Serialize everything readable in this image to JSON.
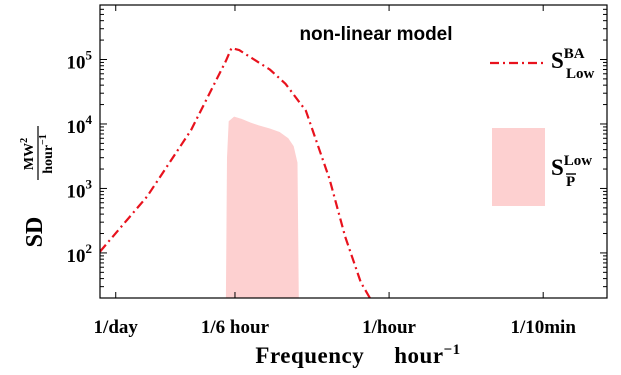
{
  "chart_data": {
    "type": "line",
    "annotation": "non-linear model",
    "xlabel": "Frequency",
    "xlabel_unit": "hour",
    "xlabel_unit_exp": "−1",
    "ylabel": "SD",
    "ylabel_unit_num_base": "MW",
    "ylabel_unit_num_exp": "2",
    "ylabel_unit_den_base": "hour",
    "ylabel_unit_den_exp": "−1",
    "x_scale": "log",
    "y_scale": "log",
    "x_unit": "cycles per hour",
    "xlim": [
      0.0347,
      12.6
    ],
    "ylim": [
      20,
      700000
    ],
    "x_ticks": [
      {
        "value": 0.041667,
        "label": "1/day"
      },
      {
        "value": 0.16667,
        "label": "1/6 hour"
      },
      {
        "value": 1,
        "label": "1/hour"
      },
      {
        "value": 6,
        "label": "1/10min"
      }
    ],
    "y_ticks": [
      {
        "value": 100,
        "base": "10",
        "exp": "2"
      },
      {
        "value": 1000,
        "base": "10",
        "exp": "3"
      },
      {
        "value": 10000,
        "base": "10",
        "exp": "4"
      },
      {
        "value": 100000,
        "base": "10",
        "exp": "5"
      }
    ],
    "grid": false,
    "legend_position": "right",
    "series": [
      {
        "name_base": "S",
        "name_sup": "BA",
        "name_sub": "Low",
        "style": "dash-dot",
        "color": "#e8121d",
        "x": [
          0.0347,
          0.06,
          0.1,
          0.15,
          0.16,
          0.175,
          0.25,
          0.3,
          0.38,
          0.5,
          0.6,
          0.72,
          0.8
        ],
        "y": [
          105,
          750,
          8000,
          95000,
          150000,
          140000,
          70000,
          42000,
          16000,
          1400,
          180,
          35,
          20
        ]
      },
      {
        "name_base": "S",
        "name_sup": "Low",
        "name_sub": "P",
        "style": "filled-area",
        "color": "#fdd0d0",
        "x": [
          0.15,
          0.152,
          0.155,
          0.165,
          0.18,
          0.2,
          0.22,
          0.25,
          0.28,
          0.31,
          0.33,
          0.345,
          0.35
        ],
        "y": [
          20,
          3000,
          11000,
          13000,
          12000,
          10500,
          9500,
          8500,
          7500,
          6000,
          4500,
          2500,
          20
        ]
      }
    ]
  }
}
